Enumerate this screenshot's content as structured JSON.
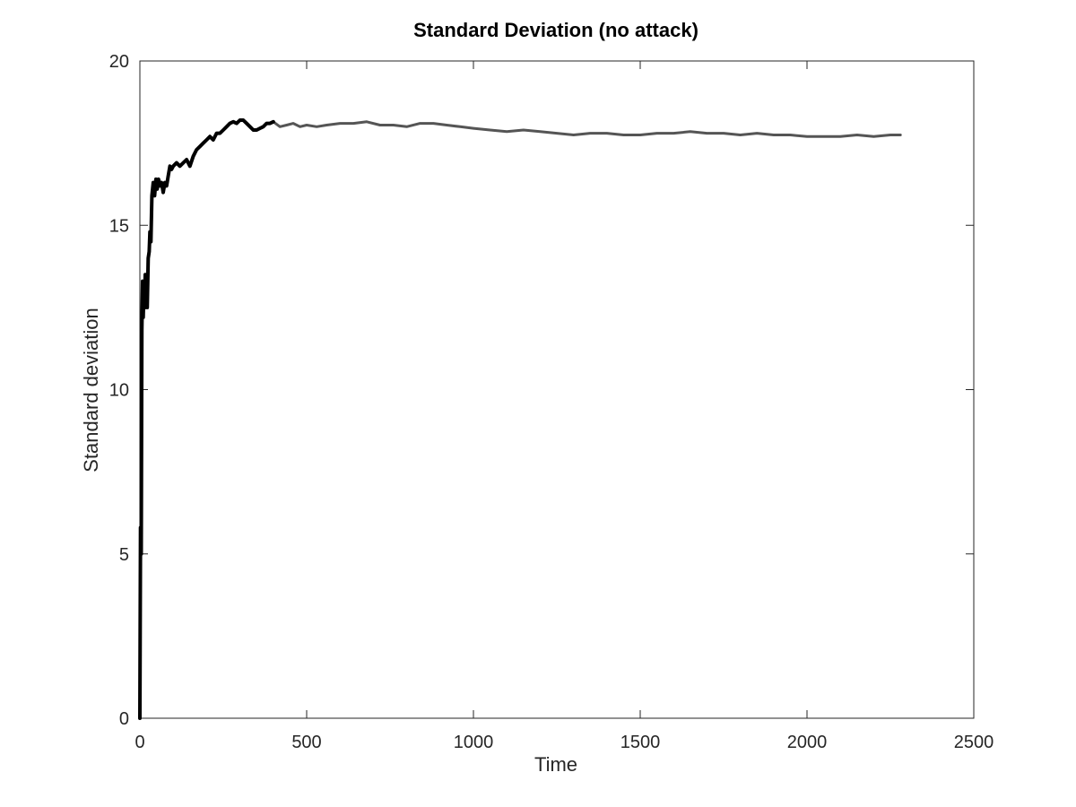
{
  "chart_data": {
    "type": "line",
    "title": "Standard Deviation (no attack)",
    "xlabel": "Time",
    "ylabel": "Standard deviation",
    "xlim": [
      0,
      2500
    ],
    "ylim": [
      0,
      20
    ],
    "xticks": [
      0,
      500,
      1000,
      1500,
      2000,
      2500
    ],
    "yticks": [
      0,
      5,
      10,
      15,
      20
    ],
    "grid": false,
    "legend": "none",
    "line_color": "#000000",
    "tail_color": "#555555",
    "series": [
      {
        "x": [
          0,
          2,
          4,
          6,
          8,
          10,
          12,
          14,
          16,
          18,
          20,
          22,
          25,
          28,
          30,
          33,
          36,
          40,
          44,
          48,
          52,
          56,
          60,
          65,
          70,
          75,
          80,
          85,
          90,
          95,
          100,
          110,
          120,
          130,
          140,
          150,
          160,
          170,
          180,
          190,
          200,
          210,
          220,
          230,
          240,
          250,
          260,
          270,
          280,
          290,
          300,
          310,
          320,
          330,
          340,
          350,
          360,
          370,
          380,
          390,
          400,
          420,
          440,
          460,
          480,
          500,
          530,
          560,
          600,
          640,
          680,
          720,
          760,
          800,
          840,
          880,
          920,
          960,
          1000,
          1050,
          1100,
          1150,
          1200,
          1250,
          1300,
          1350,
          1400,
          1450,
          1500,
          1550,
          1600,
          1650,
          1700,
          1750,
          1800,
          1850,
          1900,
          1950,
          2000,
          2050,
          2100,
          2150,
          2200,
          2250,
          2280
        ],
        "y": [
          0,
          5.8,
          5.0,
          11.8,
          13.3,
          12.2,
          13.0,
          12.6,
          13.5,
          12.5,
          13.4,
          12.5,
          14.0,
          14.2,
          14.8,
          14.5,
          15.9,
          16.3,
          15.9,
          16.4,
          16.1,
          16.4,
          16.2,
          16.3,
          16.0,
          16.3,
          16.2,
          16.5,
          16.8,
          16.7,
          16.8,
          16.9,
          16.8,
          16.9,
          17.0,
          16.8,
          17.1,
          17.3,
          17.4,
          17.5,
          17.6,
          17.7,
          17.6,
          17.8,
          17.8,
          17.9,
          18.0,
          18.1,
          18.15,
          18.1,
          18.2,
          18.2,
          18.1,
          18.0,
          17.9,
          17.9,
          17.95,
          18.0,
          18.1,
          18.1,
          18.15,
          18.0,
          18.05,
          18.1,
          18.0,
          18.05,
          18.0,
          18.05,
          18.1,
          18.1,
          18.15,
          18.05,
          18.05,
          18.0,
          18.1,
          18.1,
          18.05,
          18.0,
          17.95,
          17.9,
          17.85,
          17.9,
          17.85,
          17.8,
          17.75,
          17.8,
          17.8,
          17.75,
          17.75,
          17.8,
          17.8,
          17.85,
          17.8,
          17.8,
          17.75,
          17.8,
          17.75,
          17.75,
          17.7,
          17.7,
          17.7,
          17.75,
          17.7,
          17.75,
          17.75
        ]
      }
    ]
  }
}
